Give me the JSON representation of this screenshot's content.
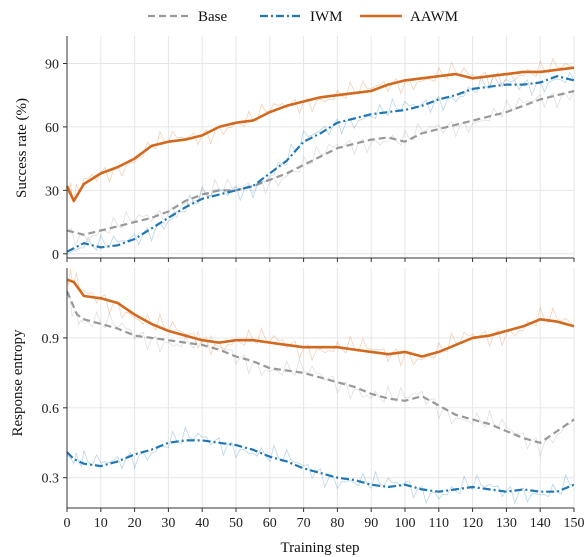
{
  "chart_data": [
    {
      "type": "line",
      "panel": "top",
      "ylabel": "Success rate (%)",
      "xlabel": "",
      "xlim": [
        0,
        150
      ],
      "ylim": [
        -2,
        103
      ],
      "yticks": [
        0,
        30,
        60,
        90
      ],
      "grid": true,
      "series": [
        {
          "name": "Base",
          "color": "#999999",
          "style": "dashed",
          "x": [
            0,
            5,
            10,
            15,
            20,
            25,
            30,
            35,
            40,
            45,
            50,
            55,
            60,
            65,
            70,
            75,
            80,
            85,
            90,
            95,
            100,
            105,
            110,
            115,
            120,
            125,
            130,
            135,
            140,
            145,
            150
          ],
          "y": [
            11,
            9,
            11,
            13,
            15,
            17,
            20,
            25,
            28,
            30,
            30,
            32,
            35,
            38,
            42,
            46,
            50,
            52,
            54,
            55,
            53,
            57,
            59,
            61,
            63,
            65,
            67,
            70,
            73,
            75,
            77
          ]
        },
        {
          "name": "IWM",
          "color": "#1f77b4",
          "style": "dashdot",
          "x": [
            0,
            5,
            10,
            15,
            20,
            25,
            30,
            35,
            40,
            45,
            50,
            55,
            60,
            65,
            70,
            75,
            80,
            85,
            90,
            95,
            100,
            105,
            110,
            115,
            120,
            125,
            130,
            135,
            140,
            145,
            150
          ],
          "y": [
            1,
            5,
            3,
            4,
            7,
            12,
            17,
            22,
            26,
            28,
            30,
            32,
            38,
            44,
            53,
            57,
            62,
            64,
            66,
            67,
            68,
            70,
            73,
            75,
            78,
            79,
            80,
            80,
            81,
            84,
            82
          ]
        },
        {
          "name": "AAWM",
          "color": "#d2691e",
          "style": "solid",
          "x": [
            0,
            2,
            5,
            10,
            15,
            20,
            25,
            30,
            35,
            40,
            45,
            50,
            55,
            60,
            65,
            70,
            75,
            80,
            85,
            90,
            95,
            100,
            105,
            110,
            115,
            120,
            125,
            130,
            135,
            140,
            145,
            150
          ],
          "y": [
            32,
            25,
            33,
            38,
            41,
            45,
            51,
            53,
            54,
            56,
            60,
            62,
            63,
            67,
            70,
            72,
            74,
            75,
            76,
            77,
            80,
            82,
            83,
            84,
            85,
            83,
            84,
            85,
            86,
            86,
            87,
            88
          ]
        }
      ]
    },
    {
      "type": "line",
      "panel": "bottom",
      "ylabel": "Response entropy",
      "xlabel": "Training step",
      "xlim": [
        0,
        150
      ],
      "ylim": [
        0.17,
        1.2
      ],
      "yticks": [
        0.3,
        0.6,
        0.9
      ],
      "xticks": [
        0,
        10,
        20,
        30,
        40,
        50,
        60,
        70,
        80,
        90,
        100,
        110,
        120,
        130,
        140,
        150
      ],
      "grid": true,
      "series": [
        {
          "name": "Base",
          "color": "#999999",
          "style": "dashed",
          "x": [
            0,
            3,
            5,
            10,
            15,
            20,
            25,
            30,
            35,
            40,
            45,
            50,
            55,
            60,
            65,
            70,
            75,
            80,
            85,
            90,
            95,
            100,
            105,
            110,
            115,
            120,
            125,
            130,
            135,
            140,
            145,
            150
          ],
          "y": [
            1.1,
            1.0,
            0.98,
            0.96,
            0.94,
            0.91,
            0.9,
            0.89,
            0.88,
            0.87,
            0.85,
            0.82,
            0.8,
            0.77,
            0.76,
            0.75,
            0.73,
            0.71,
            0.69,
            0.66,
            0.64,
            0.63,
            0.65,
            0.61,
            0.57,
            0.55,
            0.53,
            0.5,
            0.47,
            0.45,
            0.5,
            0.55
          ]
        },
        {
          "name": "IWM",
          "color": "#1f77b4",
          "style": "dashdot",
          "x": [
            0,
            2,
            5,
            10,
            15,
            20,
            25,
            30,
            35,
            40,
            45,
            50,
            55,
            60,
            65,
            70,
            75,
            80,
            85,
            90,
            95,
            100,
            105,
            110,
            115,
            120,
            125,
            130,
            135,
            140,
            145,
            150
          ],
          "y": [
            0.41,
            0.38,
            0.36,
            0.35,
            0.37,
            0.4,
            0.42,
            0.45,
            0.46,
            0.46,
            0.45,
            0.44,
            0.42,
            0.39,
            0.37,
            0.34,
            0.32,
            0.3,
            0.29,
            0.27,
            0.26,
            0.27,
            0.25,
            0.24,
            0.25,
            0.26,
            0.25,
            0.24,
            0.25,
            0.24,
            0.24,
            0.27
          ]
        },
        {
          "name": "AAWM",
          "color": "#d2691e",
          "style": "solid",
          "x": [
            0,
            2,
            5,
            10,
            15,
            20,
            25,
            30,
            35,
            40,
            45,
            50,
            55,
            60,
            65,
            70,
            75,
            80,
            85,
            90,
            95,
            100,
            105,
            110,
            115,
            120,
            125,
            130,
            135,
            140,
            145,
            150
          ],
          "y": [
            1.15,
            1.14,
            1.08,
            1.07,
            1.05,
            1.0,
            0.96,
            0.93,
            0.91,
            0.89,
            0.88,
            0.89,
            0.89,
            0.88,
            0.87,
            0.86,
            0.86,
            0.86,
            0.85,
            0.84,
            0.83,
            0.84,
            0.82,
            0.84,
            0.87,
            0.9,
            0.91,
            0.93,
            0.95,
            0.98,
            0.97,
            0.95
          ]
        }
      ]
    }
  ]
}
